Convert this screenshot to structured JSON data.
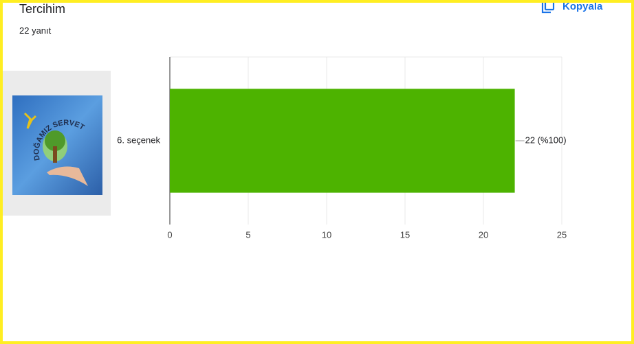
{
  "chart_data": {
    "type": "bar",
    "orientation": "horizontal",
    "title": "Tercihim",
    "subtitle": "22 yanıt",
    "categories": [
      "6. seçenek"
    ],
    "values": [
      22
    ],
    "value_labels": [
      "22 (%100)"
    ],
    "color": "#4db300",
    "xlim": [
      0,
      25
    ],
    "xticks": [
      0,
      5,
      10,
      15,
      20,
      25
    ],
    "grid": true
  },
  "copy_button": "Kopyala",
  "logo_text": "DOĞAMIZ SERVET"
}
